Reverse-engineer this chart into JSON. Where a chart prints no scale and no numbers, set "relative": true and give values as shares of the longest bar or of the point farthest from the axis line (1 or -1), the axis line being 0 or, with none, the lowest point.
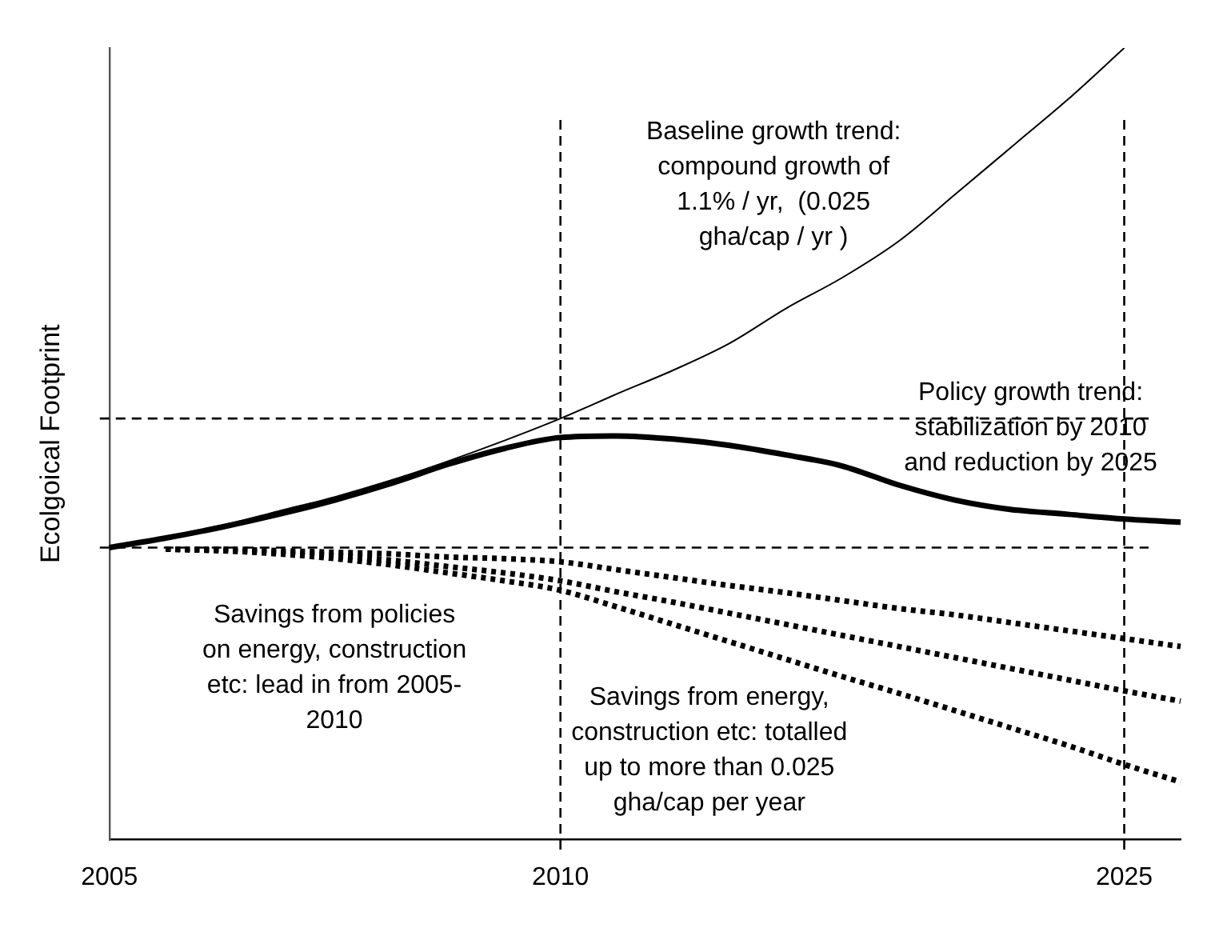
{
  "chart_data": {
    "type": "line",
    "relative": true,
    "ylabel": "Ecolgoical Footprint",
    "categories": [
      "2005",
      null,
      null,
      null,
      null,
      null,
      null,
      null,
      "2010",
      null,
      null,
      null,
      null,
      null,
      null,
      null,
      null,
      null,
      "2025",
      null
    ],
    "series": [
      {
        "color": "#000000",
        "line_style": "solid",
        "values": [
          0.369,
          0.383,
          0.397,
          0.415,
          0.433,
          0.454,
          0.478,
          0.504,
          0.532,
          0.563,
          0.593,
          0.627,
          0.671,
          0.71,
          0.756,
          0.815,
          0.875,
          0.935,
          1,
          null
        ]
      },
      {
        "color": "#000000",
        "line_style": "solid",
        "values": [
          0.369,
          0.381,
          0.395,
          0.411,
          0.429,
          0.45,
          0.474,
          0.494,
          0.508,
          0.51,
          0.506,
          0.498,
          0.486,
          0.472,
          0.448,
          0.429,
          0.417,
          0.411,
          0.405,
          0.401
        ]
      },
      {
        "color": "#000000",
        "line_style": "dotted",
        "values": [
          null,
          0.367,
          0.367,
          0.365,
          0.363,
          0.361,
          0.357,
          0.355,
          0.351,
          0.341,
          0.331,
          0.321,
          0.312,
          0.302,
          0.292,
          0.284,
          0.274,
          0.264,
          0.254,
          0.244
        ]
      },
      {
        "color": "#000000",
        "line_style": "dotted",
        "values": [
          null,
          0.367,
          0.365,
          0.363,
          0.359,
          0.353,
          0.345,
          0.337,
          0.327,
          0.313,
          0.3,
          0.286,
          0.272,
          0.258,
          0.244,
          0.23,
          0.216,
          0.202,
          0.188,
          0.175
        ]
      },
      {
        "color": "#000000",
        "line_style": "dotted",
        "values": [
          null,
          0.367,
          0.365,
          0.361,
          0.355,
          0.347,
          0.337,
          0.327,
          0.315,
          0.294,
          0.272,
          0.25,
          0.228,
          0.206,
          0.185,
          0.163,
          0.141,
          0.119,
          0.095,
          0.073
        ]
      }
    ],
    "ref_lines": [
      {
        "axis": "x",
        "value": "2010",
        "color": "#000000",
        "line_style": "dashed"
      },
      {
        "axis": "x",
        "value": "2025",
        "color": "#000000",
        "line_style": "dashed"
      },
      {
        "axis": "y",
        "value": 0.532,
        "color": "#000000",
        "line_style": "dashed"
      },
      {
        "axis": "y",
        "value": 0.369,
        "color": "#000000",
        "line_style": "dashed"
      }
    ],
    "annotations": [
      "Baseline growth trend:\ncompound growth of\n1.1% / yr,  (0.025\ngha/cap / yr )",
      "Policy growth trend:\nstabilization by 2010\nand reduction by 2025",
      "Savings from policies\non energy, construction\netc: lead in from 2005-\n2010",
      "Savings from energy,\nconstruction etc: totalled\nup to more than 0.025\ngha/cap per year"
    ],
    "grid": false,
    "legend": false,
    "marker": "none"
  }
}
